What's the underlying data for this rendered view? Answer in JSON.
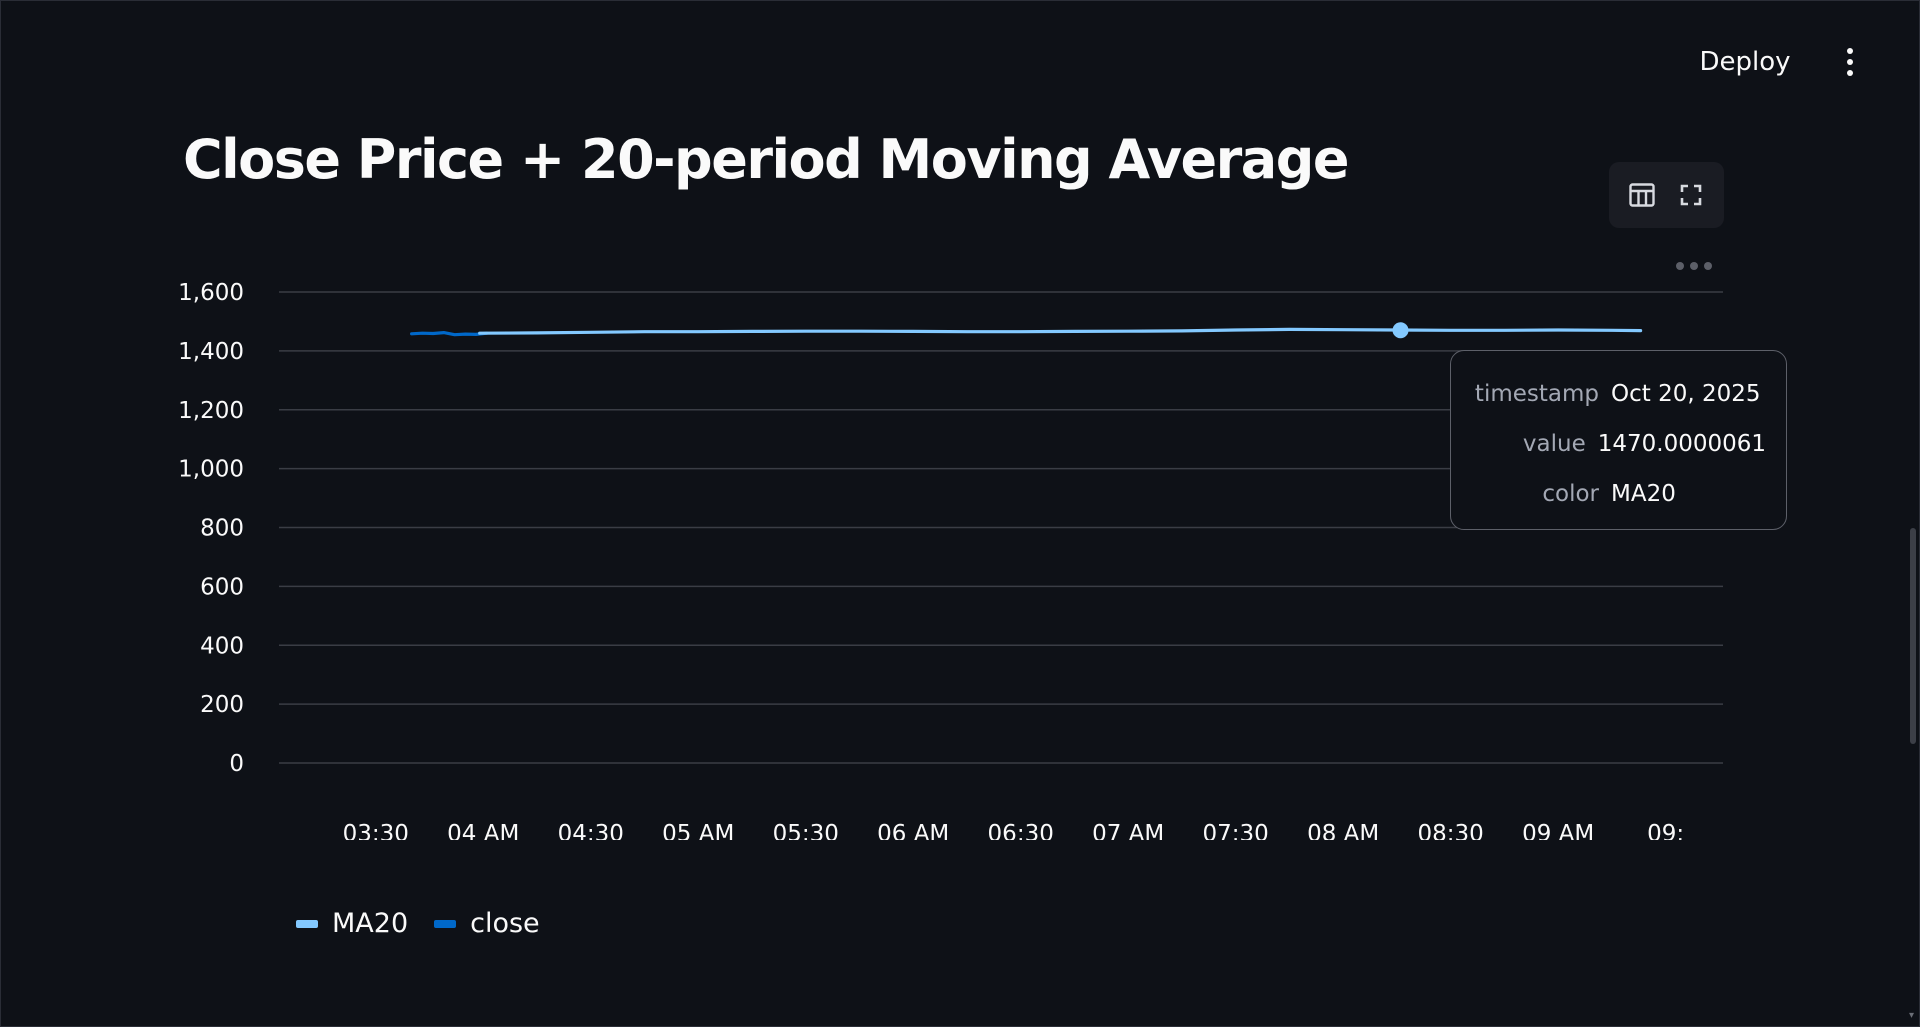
{
  "header": {
    "deploy_label": "Deploy",
    "menu_icon": "kebab-menu-icon"
  },
  "page": {
    "title": "Close Price + 20-period Moving Average"
  },
  "toolbar": {
    "table_icon": "table-icon",
    "fullscreen_icon": "fullscreen-icon",
    "more_icon": "more-options-icon"
  },
  "tooltip": {
    "rows": [
      {
        "key": "timestamp",
        "value": "Oct 20, 2025"
      },
      {
        "key": "value",
        "value": "1470.0000061"
      },
      {
        "key": "color",
        "value": "MA20"
      }
    ]
  },
  "colors": {
    "background": "#0e1117",
    "ma20": "#83c9ff",
    "close": "#0068c9",
    "grid": "#3a3d45",
    "axis_text": "#fafafa"
  },
  "chart_data": {
    "type": "line",
    "title": "Close Price + 20-period Moving Average",
    "xlabel": "",
    "ylabel": "",
    "x_ticks": [
      "03:30",
      "04 AM",
      "04:30",
      "05 AM",
      "05:30",
      "06 AM",
      "06:30",
      "07 AM",
      "07:30",
      "08 AM",
      "08:30",
      "09 AM",
      "09:"
    ],
    "x_tick_minutes": [
      210,
      240,
      270,
      300,
      330,
      360,
      390,
      420,
      450,
      480,
      510,
      540,
      570
    ],
    "xlim_minutes": [
      183,
      586
    ],
    "y_ticks": [
      "0",
      "200",
      "400",
      "600",
      "800",
      "1,000",
      "1,200",
      "1,400",
      "1,600"
    ],
    "ylim": [
      0,
      1600
    ],
    "grid": true,
    "legend_position": "bottom-left",
    "series": [
      {
        "name": "close",
        "color": "#0068c9",
        "x_minutes": [
          220,
          223,
          226,
          229,
          232,
          235,
          238,
          241
        ],
        "values": [
          1458,
          1460,
          1459,
          1462,
          1455,
          1457,
          1456,
          1460
        ]
      },
      {
        "name": "MA20",
        "color": "#83c9ff",
        "x_minutes": [
          239,
          255,
          270,
          285,
          300,
          315,
          330,
          345,
          360,
          375,
          390,
          405,
          420,
          435,
          450,
          465,
          480,
          495,
          510,
          525,
          540,
          555,
          563
        ],
        "values": [
          1460,
          1461,
          1463,
          1465,
          1465,
          1466,
          1467,
          1467,
          1466,
          1465,
          1465,
          1466,
          1467,
          1468,
          1471,
          1473,
          1472,
          1471,
          1470,
          1470,
          1471,
          1470,
          1469
        ]
      }
    ],
    "highlight": {
      "series": "MA20",
      "x_minute": 496,
      "value": 1470.0000061,
      "color": "#83c9ff"
    }
  },
  "legend": {
    "items": [
      {
        "label": "MA20",
        "color": "#83c9ff"
      },
      {
        "label": "close",
        "color": "#0068c9"
      }
    ]
  }
}
